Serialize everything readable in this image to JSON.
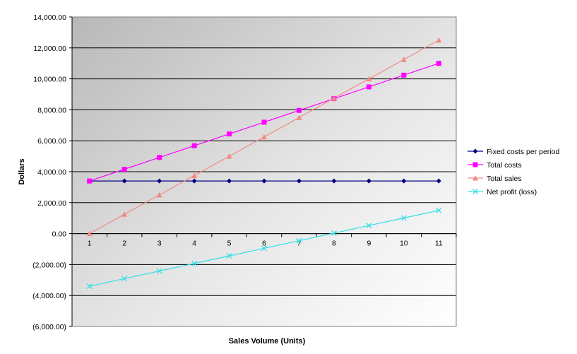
{
  "chart_data": {
    "type": "line",
    "title": "",
    "xlabel": "Sales Volume (Units)",
    "ylabel": "Dollars",
    "ylim": [
      -6000,
      14000
    ],
    "ytick_step": 2000,
    "ytick_labels": [
      "(6,000.00)",
      "(4,000.00)",
      "(2,000.00)",
      "0.00",
      "2,000.00",
      "4,000.00",
      "6,000.00",
      "8,000.00",
      "10,000.00",
      "12,000.00",
      "14,000.00"
    ],
    "categories": [
      "1",
      "2",
      "3",
      "4",
      "5",
      "6",
      "7",
      "8",
      "9",
      "10",
      "11"
    ],
    "grid": true,
    "legend_position": "right",
    "plot_background": "gradient-gray",
    "series": [
      {
        "name": "Fixed costs per period",
        "color": "#000080",
        "marker": "diamond",
        "values": [
          3400,
          3400,
          3400,
          3400,
          3400,
          3400,
          3400,
          3400,
          3400,
          3400,
          3400
        ]
      },
      {
        "name": "Total costs",
        "color": "#ff00ff",
        "marker": "square",
        "values": [
          3400,
          4160,
          4920,
          5680,
          6440,
          7200,
          7960,
          8720,
          9480,
          10240,
          11000
        ]
      },
      {
        "name": "Total sales",
        "color": "#f28a80",
        "marker": "triangle",
        "values": [
          0,
          1250,
          2500,
          3750,
          5000,
          6250,
          7500,
          8750,
          10000,
          11250,
          12500
        ]
      },
      {
        "name": "Net profit (loss)",
        "color": "#33e0e8",
        "marker": "x",
        "values": [
          -3400,
          -2910,
          -2420,
          -1930,
          -1440,
          -950,
          -460,
          30,
          520,
          1010,
          1500
        ]
      }
    ]
  }
}
